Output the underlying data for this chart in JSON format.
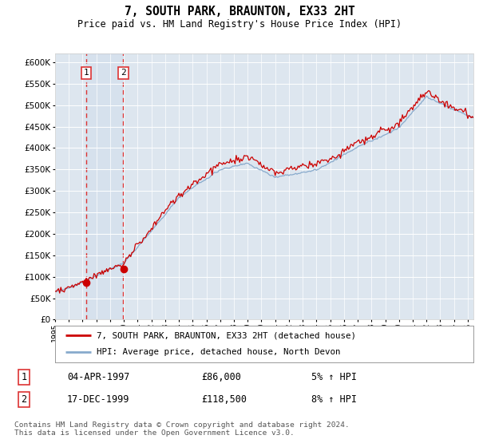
{
  "title": "7, SOUTH PARK, BRAUNTON, EX33 2HT",
  "subtitle": "Price paid vs. HM Land Registry's House Price Index (HPI)",
  "legend_label_red": "7, SOUTH PARK, BRAUNTON, EX33 2HT (detached house)",
  "legend_label_blue": "HPI: Average price, detached house, North Devon",
  "transaction1_label": "1",
  "transaction1_date": "04-APR-1997",
  "transaction1_price": "£86,000",
  "transaction1_hpi": "5% ↑ HPI",
  "transaction2_label": "2",
  "transaction2_date": "17-DEC-1999",
  "transaction2_price": "£118,500",
  "transaction2_hpi": "8% ↑ HPI",
  "footnote": "Contains HM Land Registry data © Crown copyright and database right 2024.\nThis data is licensed under the Open Government Licence v3.0.",
  "ylim": [
    0,
    620000
  ],
  "yticks": [
    0,
    50000,
    100000,
    150000,
    200000,
    250000,
    300000,
    350000,
    400000,
    450000,
    500000,
    550000,
    600000
  ],
  "color_red": "#cc0000",
  "color_blue": "#88aacc",
  "color_vline": "#dd3333",
  "bg_plot": "#dde6ef",
  "bg_figure": "#ffffff",
  "grid_color": "#ffffff",
  "transaction1_year": 1997.27,
  "transaction2_year": 1999.96,
  "xlim_start": 1995.0,
  "xlim_end": 2025.4
}
